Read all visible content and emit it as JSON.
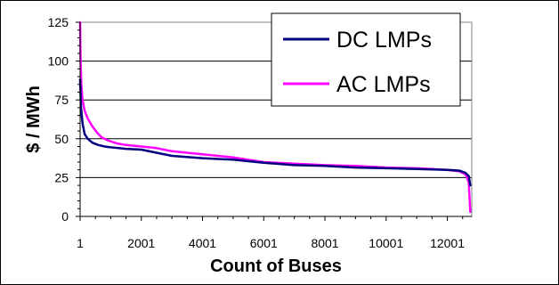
{
  "chart_data": {
    "type": "line",
    "xlabel": "Count of Buses",
    "ylabel": "$ / MWh",
    "xlim": [
      1,
      12800
    ],
    "ylim": [
      0,
      125
    ],
    "x_ticks": [
      1,
      2001,
      4001,
      6001,
      8001,
      10001,
      12001
    ],
    "y_ticks": [
      0,
      25,
      50,
      75,
      100,
      125
    ],
    "grid": "horizontal",
    "legend_position": "top-right",
    "series": [
      {
        "name": "DC LMPs",
        "color": "#000080",
        "x": [
          1,
          30,
          80,
          150,
          250,
          400,
          600,
          800,
          1000,
          1500,
          2001,
          2500,
          3001,
          4001,
          5001,
          6001,
          7001,
          8001,
          9001,
          10001,
          11001,
          12001,
          12400,
          12600,
          12700,
          12750
        ],
        "y": [
          88,
          70,
          60,
          53,
          50,
          47.5,
          46,
          45,
          44.5,
          43.5,
          43,
          41,
          39,
          37.5,
          36.5,
          34.5,
          33,
          32.5,
          31.5,
          31,
          30.5,
          30,
          29.5,
          28,
          26,
          20
        ]
      },
      {
        "name": "AC LMPs",
        "color": "#ff00ff",
        "x": [
          1,
          15,
          40,
          80,
          150,
          250,
          400,
          550,
          700,
          900,
          1200,
          1500,
          2001,
          2500,
          3001,
          4001,
          5001,
          6001,
          7001,
          8001,
          9001,
          10001,
          11001,
          12001,
          12400,
          12600,
          12700,
          12750
        ],
        "y": [
          125,
          100,
          85,
          75,
          68,
          63,
          58,
          54,
          51,
          49,
          47,
          46,
          45,
          44,
          42,
          40,
          38,
          35,
          34,
          33,
          32.5,
          31.5,
          31,
          30,
          29,
          27,
          22,
          3
        ]
      }
    ]
  }
}
